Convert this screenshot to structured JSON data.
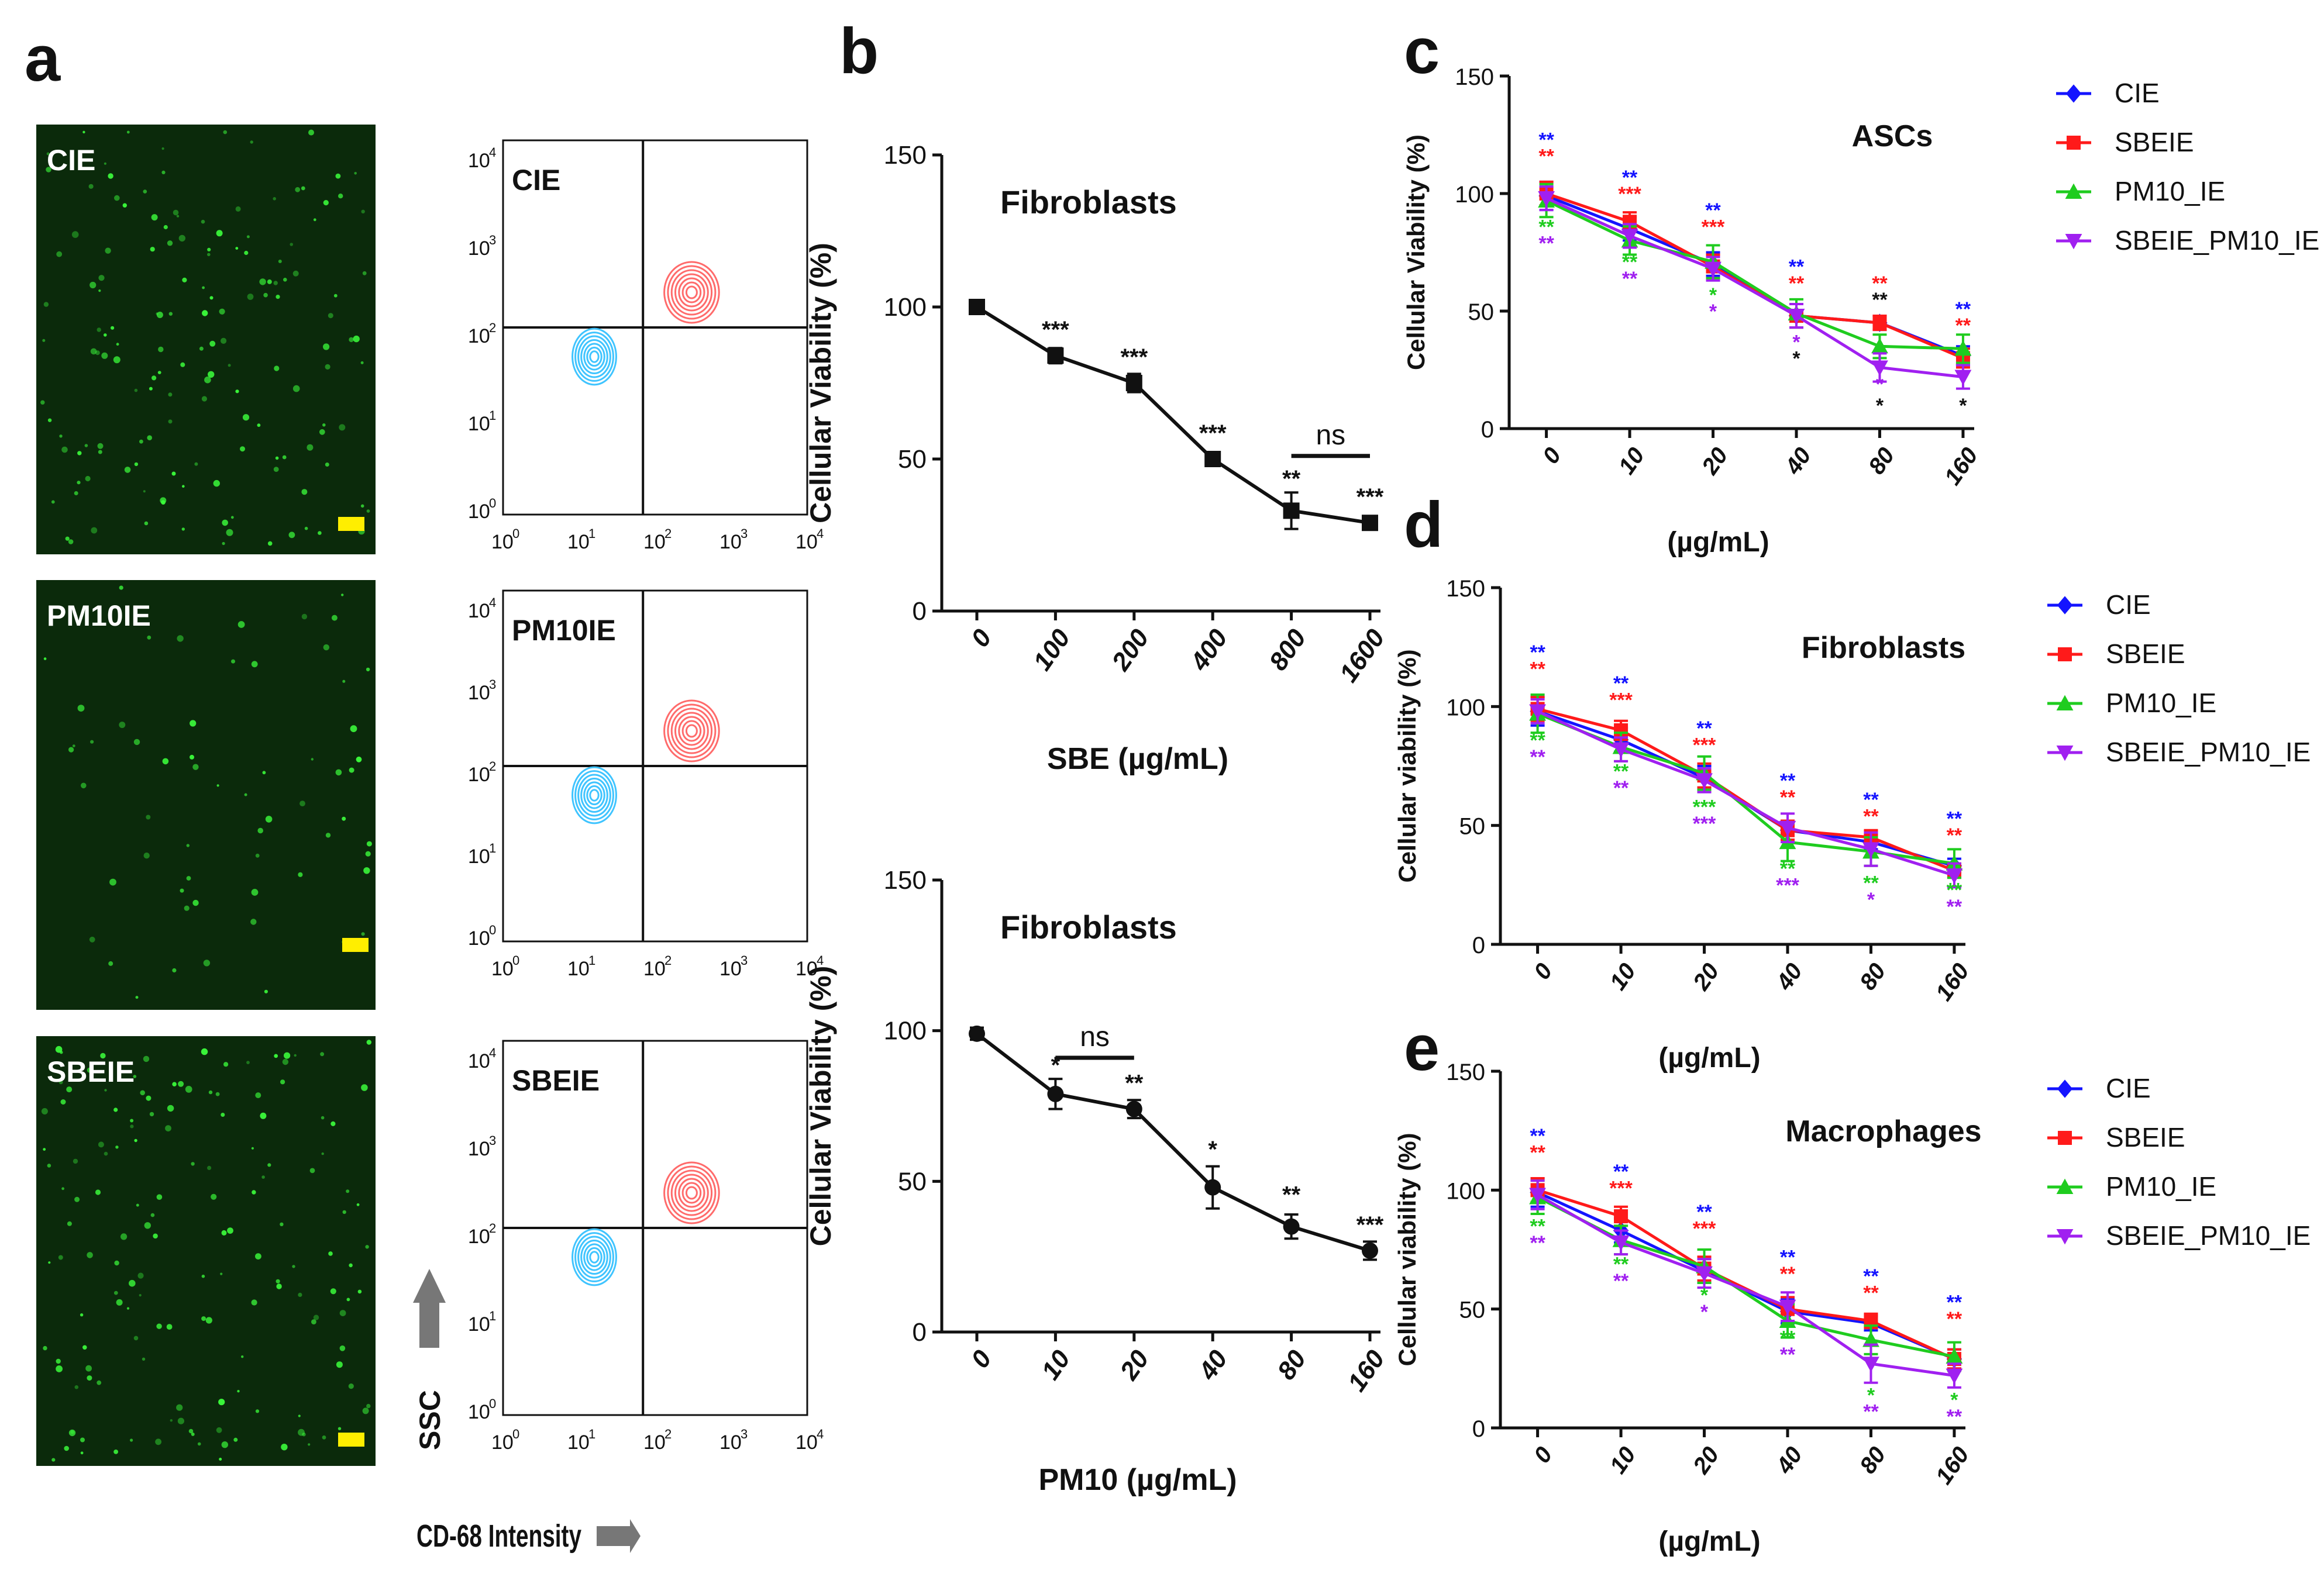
{
  "figure": {
    "panel_labels": [
      "a",
      "b",
      "c",
      "d",
      "e"
    ],
    "micro_labels": [
      "CIE",
      "PM10IE",
      "SBEIE"
    ],
    "flow_labels": [
      "CIE",
      "PM10IE",
      "SBEIE"
    ],
    "flow_ticks": [
      "10",
      "10",
      "10",
      "10",
      "10"
    ],
    "flow_exps": [
      "0",
      "1",
      "2",
      "3",
      "4"
    ],
    "ssc_label": "SSC",
    "cd68_label": "CD-68 Intensity",
    "colors": {
      "CIE": "#1414ff",
      "SBEIE": "#ff1a1a",
      "PM10_IE": "#1fcc1f",
      "SBEIE_PM10_IE": "#a020f0",
      "black": "#111111",
      "micro_bg": "#0b2a0b",
      "cell": "#3cff3c",
      "scale_bar": "#ffee00",
      "gate_blue": "#3fc4ff",
      "gate_red": "#ff6b6b"
    }
  },
  "chart_data": [
    {
      "id": "b-top",
      "type": "line",
      "title": "Fibroblasts",
      "xlabel": "SBE (µg/mL)",
      "ylabel": "Cellular Viability (%)",
      "categories": [
        "0",
        "100",
        "200",
        "400",
        "800",
        "1600"
      ],
      "ylim": [
        0,
        150
      ],
      "yticks": [
        "0",
        "50",
        "100",
        "150"
      ],
      "series": [
        {
          "name": "Fibroblasts",
          "color": "#111111",
          "marker": "square",
          "values": [
            100,
            84,
            75,
            50,
            33,
            29
          ],
          "errors": [
            2,
            2.5,
            3,
            2,
            6,
            2
          ]
        }
      ],
      "stars": [
        {
          "x": 1,
          "label": "***",
          "color": "#111111",
          "value": 90
        },
        {
          "x": 2,
          "label": "***",
          "color": "#111111",
          "value": 81
        },
        {
          "x": 3,
          "label": "***",
          "color": "#111111",
          "value": 56
        },
        {
          "x": 4,
          "label": "**",
          "color": "#111111",
          "value": 41
        },
        {
          "x": 5,
          "label": "***",
          "color": "#111111",
          "value": 35
        }
      ],
      "ns": {
        "from": 4,
        "to": 5,
        "label": "ns",
        "value": 51
      }
    },
    {
      "id": "b-bottom",
      "type": "line",
      "title": "Fibroblasts",
      "xlabel": "PM10 (µg/mL)",
      "ylabel": "Cellular Viability (%)",
      "categories": [
        "0",
        "10",
        "20",
        "40",
        "80",
        "160"
      ],
      "ylim": [
        0,
        150
      ],
      "yticks": [
        "0",
        "50",
        "100",
        "150"
      ],
      "series": [
        {
          "name": "Fibroblasts",
          "color": "#111111",
          "marker": "circle",
          "values": [
            99,
            79,
            74,
            48,
            35,
            27
          ],
          "errors": [
            2,
            5,
            3,
            7,
            4,
            3
          ]
        }
      ],
      "stars": [
        {
          "x": 1,
          "label": "*",
          "color": "#111111",
          "value": 86
        },
        {
          "x": 2,
          "label": "**",
          "color": "#111111",
          "value": 80
        },
        {
          "x": 3,
          "label": "*",
          "color": "#111111",
          "value": 58
        },
        {
          "x": 4,
          "label": "**",
          "color": "#111111",
          "value": 43
        },
        {
          "x": 5,
          "label": "***",
          "color": "#111111",
          "value": 33
        }
      ],
      "ns": {
        "from": 1,
        "to": 2,
        "label": "ns",
        "value": 91
      }
    },
    {
      "id": "c",
      "type": "line",
      "title": "ASCs",
      "xlabel": "(µg/mL)",
      "ylabel": "Cellular Viability (%)",
      "categories": [
        "0",
        "10",
        "20",
        "40",
        "80",
        "160"
      ],
      "ylim": [
        0,
        150
      ],
      "yticks": [
        "0",
        "50",
        "100",
        "150"
      ],
      "legend": "right",
      "series": [
        {
          "name": "CIE",
          "color": "#1414ff",
          "marker": "diamond",
          "values": [
            99,
            85,
            70,
            48,
            45,
            31
          ],
          "errors": [
            6,
            5,
            5,
            5,
            3,
            4
          ]
        },
        {
          "name": "SBEIE",
          "color": "#ff1a1a",
          "marker": "square",
          "values": [
            100,
            88,
            69,
            48,
            45,
            30
          ],
          "errors": [
            5,
            4,
            5,
            5,
            3,
            4
          ]
        },
        {
          "name": "PM10_IE",
          "color": "#1fcc1f",
          "marker": "triangle",
          "values": [
            97,
            80,
            71,
            49,
            35,
            34
          ],
          "errors": [
            7,
            6,
            7,
            6,
            5,
            6
          ]
        },
        {
          "name": "SBEIE_PM10_IE",
          "color": "#a020f0",
          "marker": "tri-down",
          "values": [
            98,
            82,
            68,
            48,
            26,
            22
          ],
          "errors": [
            5,
            5,
            5,
            5,
            6,
            5
          ]
        }
      ],
      "stars": [
        {
          "x": 0,
          "label": "**",
          "color": "#1414ff",
          "value": 120
        },
        {
          "x": 0,
          "label": "**",
          "color": "#ff1a1a",
          "value": 113
        },
        {
          "x": 0,
          "label": "**",
          "color": "#1fcc1f",
          "value": 83
        },
        {
          "x": 0,
          "label": "**",
          "color": "#a020f0",
          "value": 76
        },
        {
          "x": 1,
          "label": "**",
          "color": "#1414ff",
          "value": 104
        },
        {
          "x": 1,
          "label": "***",
          "color": "#ff1a1a",
          "value": 97
        },
        {
          "x": 1,
          "label": "**",
          "color": "#1fcc1f",
          "value": 68
        },
        {
          "x": 1,
          "label": "**",
          "color": "#a020f0",
          "value": 61
        },
        {
          "x": 2,
          "label": "**",
          "color": "#1414ff",
          "value": 90
        },
        {
          "x": 2,
          "label": "***",
          "color": "#ff1a1a",
          "value": 83
        },
        {
          "x": 2,
          "label": "*",
          "color": "#1fcc1f",
          "value": 54
        },
        {
          "x": 2,
          "label": "*",
          "color": "#a020f0",
          "value": 47
        },
        {
          "x": 3,
          "label": "**",
          "color": "#1414ff",
          "value": 66
        },
        {
          "x": 3,
          "label": "**",
          "color": "#ff1a1a",
          "value": 59
        },
        {
          "x": 3,
          "label": "*",
          "color": "#a020f0",
          "value": 34
        },
        {
          "x": 3,
          "label": "*",
          "color": "#111111",
          "value": 27
        },
        {
          "x": 4,
          "label": "**",
          "color": "#ff1a1a",
          "value": 59
        },
        {
          "x": 4,
          "label": "**",
          "color": "#111111",
          "value": 52
        },
        {
          "x": 4,
          "label": "*",
          "color": "#a020f0",
          "value": 16
        },
        {
          "x": 4,
          "label": "*",
          "color": "#111111",
          "value": 7
        },
        {
          "x": 5,
          "label": "**",
          "color": "#1414ff",
          "value": 48
        },
        {
          "x": 5,
          "label": "**",
          "color": "#ff1a1a",
          "value": 41
        },
        {
          "x": 5,
          "label": "*",
          "color": "#111111",
          "value": 7
        }
      ]
    },
    {
      "id": "d",
      "type": "line",
      "title": "Fibroblasts",
      "xlabel": "(µg/mL)",
      "ylabel": "Cellular viability (%)",
      "categories": [
        "0",
        "10",
        "20",
        "40",
        "80",
        "160"
      ],
      "ylim": [
        0,
        150
      ],
      "yticks": [
        "0",
        "50",
        "100",
        "150"
      ],
      "legend": "right",
      "series": [
        {
          "name": "CIE",
          "color": "#1414ff",
          "marker": "diamond",
          "values": [
            98,
            86,
            70,
            48,
            43,
            33
          ],
          "errors": [
            6,
            5,
            5,
            4,
            3,
            3
          ]
        },
        {
          "name": "SBEIE",
          "color": "#ff1a1a",
          "marker": "square",
          "values": [
            99,
            90,
            71,
            48,
            45,
            31
          ],
          "errors": [
            5,
            4,
            5,
            4,
            3,
            3
          ]
        },
        {
          "name": "PM10_IE",
          "color": "#1fcc1f",
          "marker": "triangle",
          "values": [
            97,
            83,
            72,
            43,
            39,
            34
          ],
          "errors": [
            8,
            6,
            7,
            8,
            6,
            6
          ]
        },
        {
          "name": "SBEIE_PM10_IE",
          "color": "#a020f0",
          "marker": "tri-down",
          "values": [
            98,
            82,
            69,
            49,
            40,
            29
          ],
          "errors": [
            5,
            5,
            5,
            6,
            7,
            5
          ]
        }
      ],
      "stars": [
        {
          "x": 0,
          "label": "**",
          "color": "#1414ff",
          "value": 120
        },
        {
          "x": 0,
          "label": "**",
          "color": "#ff1a1a",
          "value": 113
        },
        {
          "x": 0,
          "label": "**",
          "color": "#1fcc1f",
          "value": 83
        },
        {
          "x": 0,
          "label": "**",
          "color": "#a020f0",
          "value": 76
        },
        {
          "x": 1,
          "label": "**",
          "color": "#1414ff",
          "value": 107
        },
        {
          "x": 1,
          "label": "***",
          "color": "#ff1a1a",
          "value": 100
        },
        {
          "x": 1,
          "label": "**",
          "color": "#1fcc1f",
          "value": 70
        },
        {
          "x": 1,
          "label": "**",
          "color": "#a020f0",
          "value": 63
        },
        {
          "x": 2,
          "label": "**",
          "color": "#1414ff",
          "value": 88
        },
        {
          "x": 2,
          "label": "***",
          "color": "#ff1a1a",
          "value": 81
        },
        {
          "x": 2,
          "label": "***",
          "color": "#1fcc1f",
          "value": 55
        },
        {
          "x": 2,
          "label": "***",
          "color": "#a020f0",
          "value": 48
        },
        {
          "x": 3,
          "label": "**",
          "color": "#1414ff",
          "value": 66
        },
        {
          "x": 3,
          "label": "**",
          "color": "#ff1a1a",
          "value": 59
        },
        {
          "x": 3,
          "label": "**",
          "color": "#1fcc1f",
          "value": 29
        },
        {
          "x": 3,
          "label": "***",
          "color": "#a020f0",
          "value": 22
        },
        {
          "x": 4,
          "label": "**",
          "color": "#1414ff",
          "value": 58
        },
        {
          "x": 4,
          "label": "**",
          "color": "#ff1a1a",
          "value": 51
        },
        {
          "x": 4,
          "label": "**",
          "color": "#1fcc1f",
          "value": 23
        },
        {
          "x": 4,
          "label": "*",
          "color": "#a020f0",
          "value": 16
        },
        {
          "x": 5,
          "label": "**",
          "color": "#1414ff",
          "value": 50
        },
        {
          "x": 5,
          "label": "**",
          "color": "#ff1a1a",
          "value": 43
        },
        {
          "x": 5,
          "label": "**",
          "color": "#1fcc1f",
          "value": 20
        },
        {
          "x": 5,
          "label": "**",
          "color": "#a020f0",
          "value": 13
        }
      ]
    },
    {
      "id": "e",
      "type": "line",
      "title": "Macrophages",
      "xlabel": "(µg/mL)",
      "ylabel": "Cellular viability (%)",
      "categories": [
        "0",
        "10",
        "20",
        "40",
        "80",
        "160"
      ],
      "ylim": [
        0,
        150
      ],
      "yticks": [
        "0",
        "50",
        "100",
        "150"
      ],
      "legend": "right",
      "series": [
        {
          "name": "CIE",
          "color": "#1414ff",
          "marker": "diamond",
          "values": [
            99,
            83,
            66,
            49,
            44,
            29
          ],
          "errors": [
            6,
            5,
            5,
            5,
            3,
            4
          ]
        },
        {
          "name": "SBEIE",
          "color": "#ff1a1a",
          "marker": "square",
          "values": [
            100,
            89,
            67,
            50,
            45,
            29
          ],
          "errors": [
            5,
            4,
            5,
            5,
            3,
            4
          ]
        },
        {
          "name": "PM10_IE",
          "color": "#1fcc1f",
          "marker": "triangle",
          "values": [
            97,
            79,
            68,
            45,
            37,
            30
          ],
          "errors": [
            7,
            6,
            7,
            7,
            6,
            6
          ]
        },
        {
          "name": "SBEIE_PM10_IE",
          "color": "#a020f0",
          "marker": "tri-down",
          "values": [
            98,
            78,
            65,
            51,
            27,
            22
          ],
          "errors": [
            6,
            5,
            6,
            6,
            8,
            5
          ]
        }
      ],
      "stars": [
        {
          "x": 0,
          "label": "**",
          "color": "#1414ff",
          "value": 120
        },
        {
          "x": 0,
          "label": "**",
          "color": "#ff1a1a",
          "value": 113
        },
        {
          "x": 0,
          "label": "**",
          "color": "#1fcc1f",
          "value": 82
        },
        {
          "x": 0,
          "label": "**",
          "color": "#a020f0",
          "value": 75
        },
        {
          "x": 1,
          "label": "**",
          "color": "#1414ff",
          "value": 105
        },
        {
          "x": 1,
          "label": "***",
          "color": "#ff1a1a",
          "value": 98
        },
        {
          "x": 1,
          "label": "**",
          "color": "#1fcc1f",
          "value": 66
        },
        {
          "x": 1,
          "label": "**",
          "color": "#a020f0",
          "value": 59
        },
        {
          "x": 2,
          "label": "**",
          "color": "#1414ff",
          "value": 88
        },
        {
          "x": 2,
          "label": "***",
          "color": "#ff1a1a",
          "value": 81
        },
        {
          "x": 2,
          "label": "*",
          "color": "#1fcc1f",
          "value": 53
        },
        {
          "x": 2,
          "label": "*",
          "color": "#a020f0",
          "value": 46
        },
        {
          "x": 3,
          "label": "**",
          "color": "#1414ff",
          "value": 69
        },
        {
          "x": 3,
          "label": "**",
          "color": "#ff1a1a",
          "value": 62
        },
        {
          "x": 3,
          "label": "**",
          "color": "#1fcc1f",
          "value": 35
        },
        {
          "x": 3,
          "label": "**",
          "color": "#a020f0",
          "value": 28
        },
        {
          "x": 4,
          "label": "**",
          "color": "#1414ff",
          "value": 61
        },
        {
          "x": 4,
          "label": "**",
          "color": "#ff1a1a",
          "value": 54
        },
        {
          "x": 4,
          "label": "*",
          "color": "#1fcc1f",
          "value": 11
        },
        {
          "x": 4,
          "label": "**",
          "color": "#a020f0",
          "value": 4
        },
        {
          "x": 5,
          "label": "**",
          "color": "#1414ff",
          "value": 50
        },
        {
          "x": 5,
          "label": "**",
          "color": "#ff1a1a",
          "value": 43
        },
        {
          "x": 5,
          "label": "*",
          "color": "#1fcc1f",
          "value": 9
        },
        {
          "x": 5,
          "label": "**",
          "color": "#a020f0",
          "value": 2
        }
      ]
    }
  ]
}
